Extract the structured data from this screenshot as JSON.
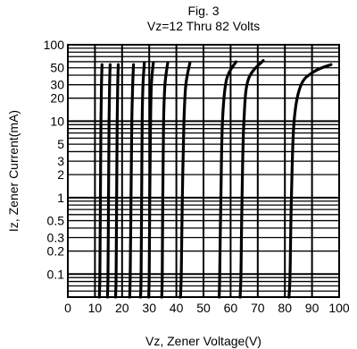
{
  "chart_data": {
    "type": "line",
    "title": "Fig. 3",
    "subtitle": "Vz=12 Thru 82 Volts",
    "xlabel": "Vz, Zener Voltage(V)",
    "ylabel": "Iz, Zener Current(mA)",
    "xlim": [
      0,
      100
    ],
    "ylim": [
      0.05,
      100
    ],
    "yscale": "log",
    "grid": true,
    "x_ticks": [
      "0",
      "10",
      "20",
      "30",
      "40",
      "50",
      "60",
      "70",
      "80",
      "90",
      "100"
    ],
    "y_ticks": [
      "0.1",
      "0.2",
      "0.3",
      "0.5",
      "1",
      "2",
      "3",
      "5",
      "10",
      "20",
      "30",
      "50",
      "100"
    ],
    "line_color": "#000000",
    "series": [
      {
        "points": [
          [
            11.6,
            0.05
          ],
          [
            11.8,
            0.1
          ],
          [
            12.0,
            1
          ],
          [
            12.2,
            10
          ],
          [
            12.4,
            30
          ],
          [
            12.6,
            55
          ]
        ]
      },
      {
        "points": [
          [
            14.6,
            0.05
          ],
          [
            14.8,
            0.1
          ],
          [
            15.0,
            1
          ],
          [
            15.2,
            10
          ],
          [
            15.4,
            30
          ],
          [
            15.6,
            55
          ]
        ]
      },
      {
        "points": [
          [
            17.6,
            0.05
          ],
          [
            17.8,
            0.1
          ],
          [
            18.0,
            1
          ],
          [
            18.2,
            10
          ],
          [
            18.4,
            30
          ],
          [
            18.6,
            55
          ]
        ]
      },
      {
        "points": [
          [
            22.8,
            0.05
          ],
          [
            23.0,
            0.1
          ],
          [
            23.3,
            1
          ],
          [
            23.6,
            10
          ],
          [
            23.9,
            30
          ],
          [
            24.2,
            55
          ]
        ]
      },
      {
        "points": [
          [
            26.8,
            0.05
          ],
          [
            27.0,
            0.1
          ],
          [
            27.2,
            1
          ],
          [
            27.4,
            10
          ],
          [
            27.7,
            30
          ],
          [
            28.2,
            58
          ]
        ]
      },
      {
        "points": [
          [
            29.8,
            0.05
          ],
          [
            30.0,
            0.1
          ],
          [
            30.2,
            1
          ],
          [
            30.5,
            10
          ],
          [
            30.8,
            30
          ],
          [
            31.5,
            58
          ]
        ]
      },
      {
        "points": [
          [
            34.6,
            0.05
          ],
          [
            34.8,
            0.1
          ],
          [
            35.0,
            1
          ],
          [
            35.3,
            10
          ],
          [
            35.8,
            30
          ],
          [
            36.8,
            58
          ]
        ]
      },
      {
        "points": [
          [
            41.5,
            0.05
          ],
          [
            41.8,
            0.1
          ],
          [
            42.2,
            1
          ],
          [
            42.8,
            10
          ],
          [
            43.5,
            30
          ],
          [
            45.0,
            58
          ]
        ]
      },
      {
        "points": [
          [
            55.8,
            0.05
          ],
          [
            56.0,
            0.1
          ],
          [
            56.4,
            1
          ],
          [
            57.0,
            10
          ],
          [
            58.5,
            35
          ],
          [
            62.0,
            60
          ]
        ]
      },
      {
        "points": [
          [
            63.5,
            0.05
          ],
          [
            63.8,
            0.1
          ],
          [
            64.2,
            1
          ],
          [
            64.9,
            10
          ],
          [
            66.5,
            35
          ],
          [
            72.0,
            62
          ]
        ]
      },
      {
        "points": [
          [
            81.5,
            0.05
          ],
          [
            81.9,
            0.1
          ],
          [
            82.4,
            1
          ],
          [
            83.4,
            10
          ],
          [
            86.0,
            30
          ],
          [
            91.0,
            45
          ],
          [
            97.0,
            55
          ]
        ]
      }
    ]
  }
}
